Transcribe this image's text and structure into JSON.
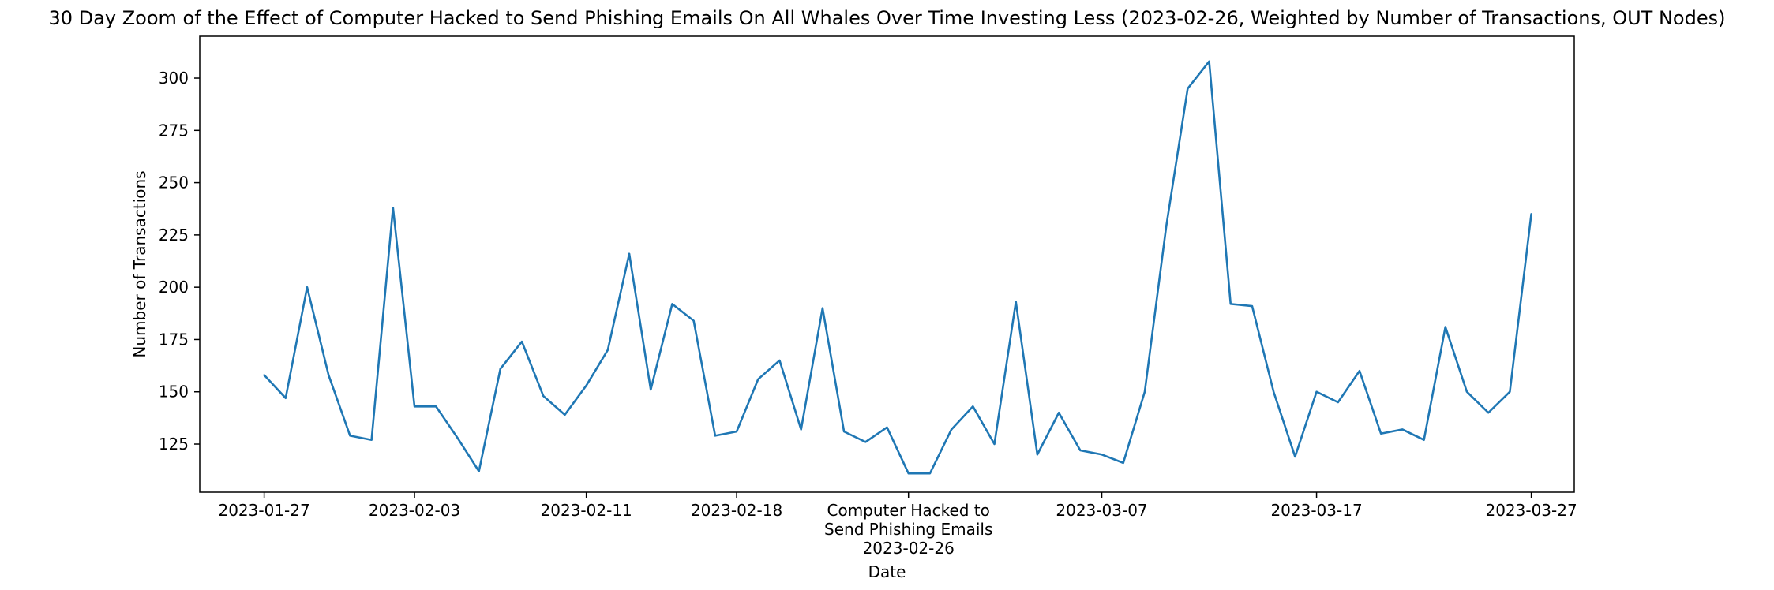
{
  "chart_data": {
    "type": "line",
    "title": "30 Day Zoom of the Effect of Computer Hacked to Send Phishing Emails On All Whales Over Time Investing Less (2023-02-26, Weighted by Number of Transactions, OUT Nodes)",
    "xlabel": "Date",
    "ylabel": "Number of Transactions",
    "xlim": [
      "2023-01-24",
      "2023-03-29"
    ],
    "ylim": [
      102,
      320
    ],
    "grid": false,
    "legend": "none",
    "x_ticks": [
      {
        "date": "2023-01-27",
        "label": "2023-01-27"
      },
      {
        "date": "2023-02-03",
        "label": "2023-02-03"
      },
      {
        "date": "2023-02-11",
        "label": "2023-02-11"
      },
      {
        "date": "2023-02-18",
        "label": "2023-02-18"
      },
      {
        "date": "2023-02-26",
        "label": "Computer Hacked to\nSend Phishing Emails\n2023-02-26"
      },
      {
        "date": "2023-03-07",
        "label": "2023-03-07"
      },
      {
        "date": "2023-03-17",
        "label": "2023-03-17"
      },
      {
        "date": "2023-03-27",
        "label": "2023-03-27"
      }
    ],
    "y_ticks": [
      125,
      150,
      175,
      200,
      225,
      250,
      275,
      300
    ],
    "series": [
      {
        "color": "#1f77b4",
        "x": [
          "2023-01-27",
          "2023-01-28",
          "2023-01-29",
          "2023-01-30",
          "2023-01-31",
          "2023-02-01",
          "2023-02-02",
          "2023-02-03",
          "2023-02-04",
          "2023-02-05",
          "2023-02-06",
          "2023-02-07",
          "2023-02-08",
          "2023-02-09",
          "2023-02-10",
          "2023-02-11",
          "2023-02-12",
          "2023-02-13",
          "2023-02-14",
          "2023-02-15",
          "2023-02-16",
          "2023-02-17",
          "2023-02-18",
          "2023-02-19",
          "2023-02-20",
          "2023-02-21",
          "2023-02-22",
          "2023-02-23",
          "2023-02-24",
          "2023-02-25",
          "2023-02-26",
          "2023-02-27",
          "2023-02-28",
          "2023-03-01",
          "2023-03-02",
          "2023-03-03",
          "2023-03-04",
          "2023-03-05",
          "2023-03-06",
          "2023-03-07",
          "2023-03-08",
          "2023-03-09",
          "2023-03-10",
          "2023-03-11",
          "2023-03-12",
          "2023-03-13",
          "2023-03-14",
          "2023-03-15",
          "2023-03-16",
          "2023-03-17",
          "2023-03-18",
          "2023-03-19",
          "2023-03-20",
          "2023-03-21",
          "2023-03-22",
          "2023-03-23",
          "2023-03-24",
          "2023-03-25",
          "2023-03-26",
          "2023-03-27"
        ],
        "values": [
          158,
          147,
          200,
          158,
          129,
          127,
          238,
          143,
          143,
          128,
          112,
          161,
          174,
          148,
          139,
          153,
          170,
          216,
          151,
          192,
          184,
          129,
          131,
          156,
          165,
          132,
          190,
          131,
          126,
          133,
          111,
          111,
          132,
          143,
          125,
          193,
          120,
          140,
          122,
          120,
          116,
          150,
          229,
          295,
          308,
          192,
          191,
          150,
          119,
          150,
          145,
          160,
          130,
          132,
          127,
          181,
          150,
          140,
          150,
          235
        ]
      }
    ]
  }
}
